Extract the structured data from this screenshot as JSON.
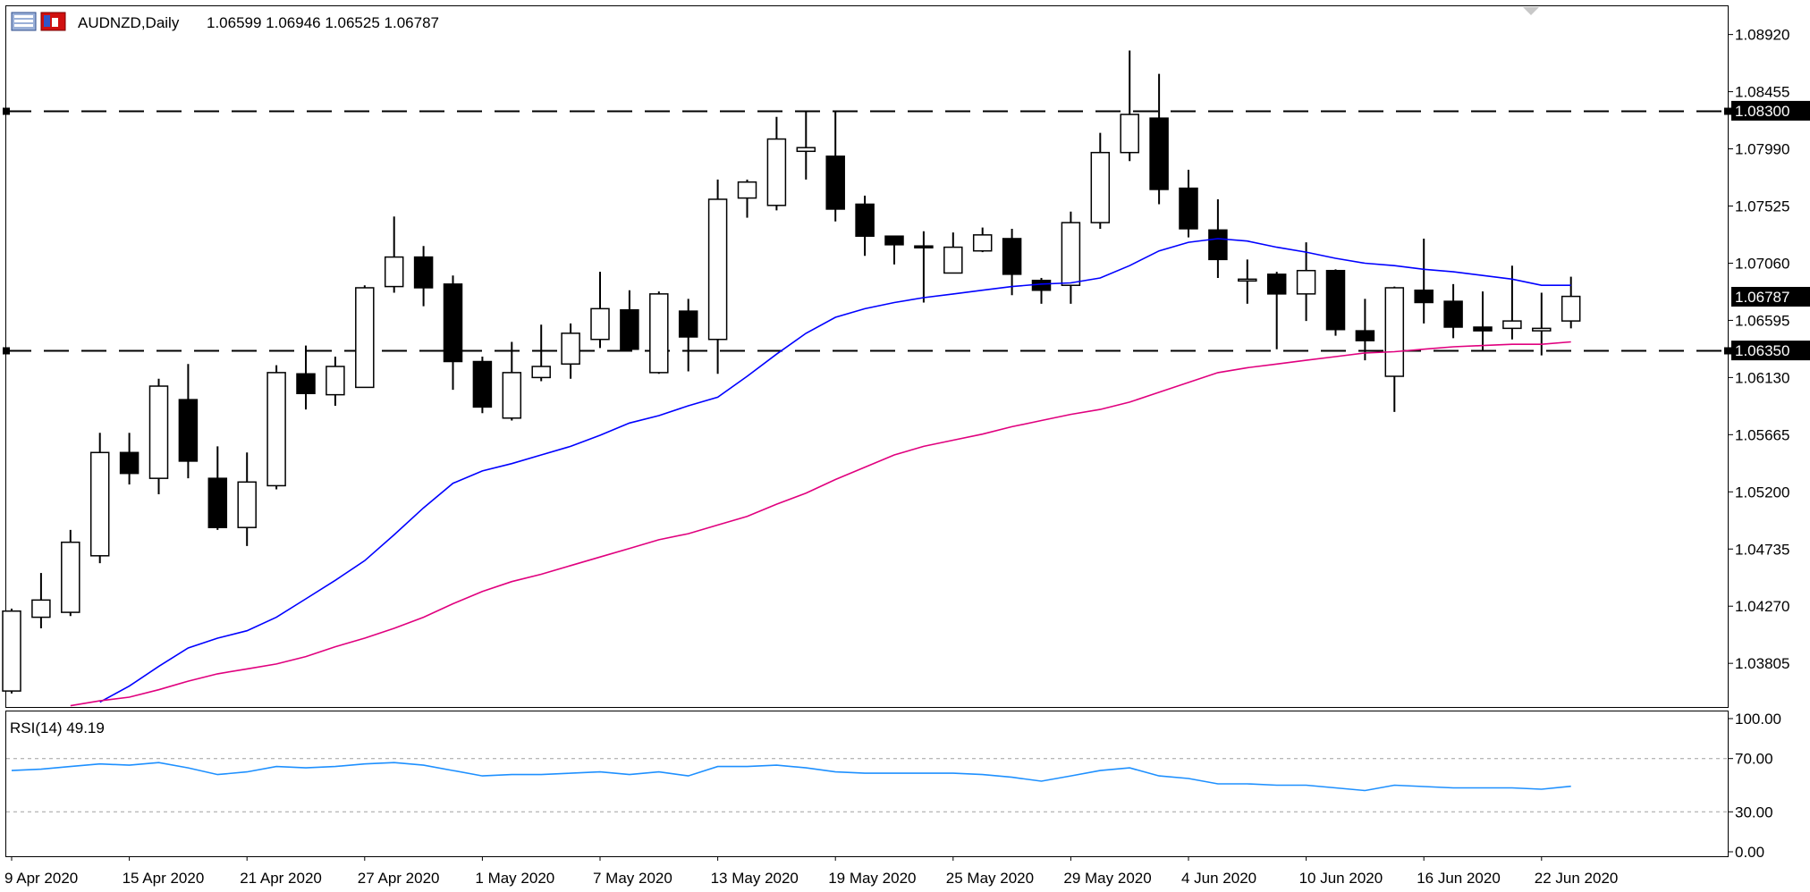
{
  "header": {
    "symbol_timeframe": "AUDNZD,Daily",
    "ohlc": "1.06599 1.06946 1.06525 1.06787"
  },
  "rsi_panel": {
    "label": "RSI(14) 49.19",
    "ticks": [
      "100.00",
      "70.00",
      "30.00",
      "0.00"
    ]
  },
  "colors": {
    "background": "#ffffff",
    "frame": "#000000",
    "bull_body": "#ffffff",
    "bear_body": "#000000",
    "ma_fast": "#0000ff",
    "ma_slow": "#e0007e",
    "rsi_line": "#1e90ff",
    "level_line": "#000000",
    "rsi_levels": "#a0a0a0"
  },
  "icons": [
    "chart-properties-icon",
    "chart-trade-icon"
  ],
  "chart_data": [
    {
      "type": "candlestick",
      "title": "AUDNZD,Daily",
      "ylim": [
        1.0345,
        1.0915
      ],
      "y_ticks": [
        "1.08920",
        "1.08455",
        "1.07990",
        "1.07525",
        "1.07060",
        "1.06595",
        "1.06130",
        "1.05665",
        "1.05200",
        "1.04735",
        "1.04270",
        "1.03805"
      ],
      "x_tick_labels": [
        "9 Apr 2020",
        "15 Apr 2020",
        "21 Apr 2020",
        "27 Apr 2020",
        "1 May 2020",
        "7 May 2020",
        "13 May 2020",
        "19 May 2020",
        "25 May 2020",
        "29 May 2020",
        "4 Jun 2020",
        "10 Jun 2020",
        "16 Jun 2020",
        "22 Jun 2020"
      ],
      "candles": [
        {
          "date": "2020-04-09",
          "open": 1.0358,
          "high": 1.0425,
          "low": 1.0356,
          "close": 1.0423
        },
        {
          "date": "2020-04-10",
          "open": 1.0418,
          "high": 1.0454,
          "low": 1.0409,
          "close": 1.0432
        },
        {
          "date": "2020-04-13",
          "open": 1.0422,
          "high": 1.0489,
          "low": 1.0419,
          "close": 1.0479
        },
        {
          "date": "2020-04-14",
          "open": 1.0468,
          "high": 1.0568,
          "low": 1.0462,
          "close": 1.0552
        },
        {
          "date": "2020-04-15",
          "open": 1.0552,
          "high": 1.0568,
          "low": 1.0526,
          "close": 1.0535
        },
        {
          "date": "2020-04-16",
          "open": 1.0531,
          "high": 1.0612,
          "low": 1.0518,
          "close": 1.0606
        },
        {
          "date": "2020-04-17",
          "open": 1.0595,
          "high": 1.0624,
          "low": 1.0531,
          "close": 1.0545
        },
        {
          "date": "2020-04-20",
          "open": 1.0531,
          "high": 1.0557,
          "low": 1.0489,
          "close": 1.0491
        },
        {
          "date": "2020-04-21",
          "open": 1.0491,
          "high": 1.0552,
          "low": 1.0476,
          "close": 1.0528
        },
        {
          "date": "2020-04-22",
          "open": 1.0525,
          "high": 1.0623,
          "low": 1.0522,
          "close": 1.0617
        },
        {
          "date": "2020-04-23",
          "open": 1.0616,
          "high": 1.0639,
          "low": 1.0587,
          "close": 1.06
        },
        {
          "date": "2020-04-24",
          "open": 1.0599,
          "high": 1.063,
          "low": 1.059,
          "close": 1.0622
        },
        {
          "date": "2020-04-27",
          "open": 1.0605,
          "high": 1.0688,
          "low": 1.0605,
          "close": 1.0686
        },
        {
          "date": "2020-04-28",
          "open": 1.0687,
          "high": 1.0744,
          "low": 1.0682,
          "close": 1.0711
        },
        {
          "date": "2020-04-29",
          "open": 1.0711,
          "high": 1.072,
          "low": 1.0671,
          "close": 1.0686
        },
        {
          "date": "2020-04-30",
          "open": 1.0689,
          "high": 1.0696,
          "low": 1.0603,
          "close": 1.0626
        },
        {
          "date": "2020-05-01",
          "open": 1.0626,
          "high": 1.063,
          "low": 1.0584,
          "close": 1.0589
        },
        {
          "date": "2020-05-04",
          "open": 1.058,
          "high": 1.0642,
          "low": 1.0578,
          "close": 1.0617
        },
        {
          "date": "2020-05-05",
          "open": 1.0613,
          "high": 1.0656,
          "low": 1.061,
          "close": 1.0622
        },
        {
          "date": "2020-05-06",
          "open": 1.0624,
          "high": 1.0657,
          "low": 1.0612,
          "close": 1.0649
        },
        {
          "date": "2020-05-07",
          "open": 1.0644,
          "high": 1.0699,
          "low": 1.0637,
          "close": 1.0669
        },
        {
          "date": "2020-05-08",
          "open": 1.0668,
          "high": 1.0684,
          "low": 1.0637,
          "close": 1.0636
        },
        {
          "date": "2020-05-11",
          "open": 1.0617,
          "high": 1.0683,
          "low": 1.0616,
          "close": 1.0681
        },
        {
          "date": "2020-05-12",
          "open": 1.0667,
          "high": 1.0677,
          "low": 1.0618,
          "close": 1.0646
        },
        {
          "date": "2020-05-13",
          "open": 1.0644,
          "high": 1.0774,
          "low": 1.0616,
          "close": 1.0758
        },
        {
          "date": "2020-05-14",
          "open": 1.0759,
          "high": 1.0774,
          "low": 1.0743,
          "close": 1.0772
        },
        {
          "date": "2020-05-15",
          "open": 1.0753,
          "high": 1.0825,
          "low": 1.0749,
          "close": 1.0807
        },
        {
          "date": "2020-05-18",
          "open": 1.0797,
          "high": 1.083,
          "low": 1.0774,
          "close": 1.08
        },
        {
          "date": "2020-05-19",
          "open": 1.0793,
          "high": 1.083,
          "low": 1.074,
          "close": 1.075
        },
        {
          "date": "2020-05-20",
          "open": 1.0754,
          "high": 1.0761,
          "low": 1.0712,
          "close": 1.0728
        },
        {
          "date": "2020-05-21",
          "open": 1.0728,
          "high": 1.0727,
          "low": 1.0705,
          "close": 1.0721
        },
        {
          "date": "2020-05-22",
          "open": 1.072,
          "high": 1.0732,
          "low": 1.0674,
          "close": 1.0719
        },
        {
          "date": "2020-05-25",
          "open": 1.0698,
          "high": 1.0731,
          "low": 1.0698,
          "close": 1.0719
        },
        {
          "date": "2020-05-26",
          "open": 1.0716,
          "high": 1.0735,
          "low": 1.0715,
          "close": 1.0729
        },
        {
          "date": "2020-05-27",
          "open": 1.0726,
          "high": 1.0734,
          "low": 1.068,
          "close": 1.0697
        },
        {
          "date": "2020-05-28",
          "open": 1.0692,
          "high": 1.0694,
          "low": 1.0673,
          "close": 1.0684
        },
        {
          "date": "2020-05-29",
          "open": 1.0688,
          "high": 1.0748,
          "low": 1.0673,
          "close": 1.0739
        },
        {
          "date": "2020-06-01",
          "open": 1.0739,
          "high": 1.0812,
          "low": 1.0734,
          "close": 1.0796
        },
        {
          "date": "2020-06-02",
          "open": 1.0796,
          "high": 1.0879,
          "low": 1.0789,
          "close": 1.0827
        },
        {
          "date": "2020-06-03",
          "open": 1.0824,
          "high": 1.086,
          "low": 1.0754,
          "close": 1.0766
        },
        {
          "date": "2020-06-04",
          "open": 1.0767,
          "high": 1.0782,
          "low": 1.0727,
          "close": 1.0734
        },
        {
          "date": "2020-06-05",
          "open": 1.0733,
          "high": 1.0758,
          "low": 1.0694,
          "close": 1.0709
        },
        {
          "date": "2020-06-08",
          "open": 1.0693,
          "high": 1.0709,
          "low": 1.0673,
          "close": 1.0693
        },
        {
          "date": "2020-06-09",
          "open": 1.0697,
          "high": 1.0699,
          "low": 1.0636,
          "close": 1.0681
        },
        {
          "date": "2020-06-10",
          "open": 1.0681,
          "high": 1.0723,
          "low": 1.0659,
          "close": 1.07
        },
        {
          "date": "2020-06-11",
          "open": 1.07,
          "high": 1.0701,
          "low": 1.0647,
          "close": 1.0652
        },
        {
          "date": "2020-06-12",
          "open": 1.0651,
          "high": 1.0677,
          "low": 1.0627,
          "close": 1.0643
        },
        {
          "date": "2020-06-15",
          "open": 1.0614,
          "high": 1.0687,
          "low": 1.0585,
          "close": 1.0686
        },
        {
          "date": "2020-06-16",
          "open": 1.0684,
          "high": 1.0726,
          "low": 1.0657,
          "close": 1.0674
        },
        {
          "date": "2020-06-17",
          "open": 1.0675,
          "high": 1.0689,
          "low": 1.0645,
          "close": 1.0654
        },
        {
          "date": "2020-06-18",
          "open": 1.0654,
          "high": 1.0683,
          "low": 1.0635,
          "close": 1.0651
        },
        {
          "date": "2020-06-19",
          "open": 1.0653,
          "high": 1.0704,
          "low": 1.0644,
          "close": 1.0659
        },
        {
          "date": "2020-06-22",
          "open": 1.0651,
          "high": 1.0682,
          "low": 1.0631,
          "close": 1.0653
        },
        {
          "date": "2020-06-23",
          "open": 1.0659,
          "high": 1.0695,
          "low": 1.0653,
          "close": 1.0679
        }
      ],
      "moving_averages": [
        {
          "color": "blue",
          "values": [
            null,
            null,
            null,
            1.0349,
            1.0362,
            1.0378,
            1.0393,
            1.0401,
            1.0407,
            1.0418,
            1.0433,
            1.0448,
            1.0464,
            1.0485,
            1.0507,
            1.0527,
            1.0537,
            1.0543,
            1.055,
            1.0557,
            1.0566,
            1.0576,
            1.0582,
            1.059,
            1.0597,
            1.0614,
            1.0632,
            1.0649,
            1.0662,
            1.0669,
            1.0674,
            1.0678,
            1.0681,
            1.0684,
            1.0687,
            1.0689,
            1.069,
            1.0694,
            1.0704,
            1.0716,
            1.0723,
            1.0726,
            1.0724,
            1.0719,
            1.0715,
            1.071,
            1.0706,
            1.0704,
            1.0701,
            1.0699,
            1.0696,
            1.0693,
            1.0688,
            1.0688
          ]
        },
        {
          "color": "magenta",
          "values": [
            null,
            null,
            1.0346,
            1.035,
            1.0353,
            1.0359,
            1.0366,
            1.0372,
            1.0376,
            1.038,
            1.0386,
            1.0394,
            1.0401,
            1.0409,
            1.0418,
            1.0429,
            1.0439,
            1.0447,
            1.0453,
            1.046,
            1.0467,
            1.0474,
            1.0481,
            1.0486,
            1.0493,
            1.05,
            1.051,
            1.0519,
            1.053,
            1.054,
            1.055,
            1.0557,
            1.0562,
            1.0567,
            1.0573,
            1.0578,
            1.0583,
            1.0587,
            1.0593,
            1.0601,
            1.0609,
            1.0617,
            1.0621,
            1.0624,
            1.0627,
            1.063,
            1.0633,
            1.0634,
            1.0636,
            1.0638,
            1.0639,
            1.064,
            1.064,
            1.0642
          ]
        }
      ],
      "horizontal_levels": [
        {
          "value": 1.083,
          "label": "1.08300"
        },
        {
          "value": 1.0635,
          "label": "1.06350"
        }
      ],
      "current_price": {
        "value": 1.06787,
        "label": "1.06787"
      }
    },
    {
      "type": "line",
      "title": "RSI(14) 49.19",
      "ylim": [
        0,
        100
      ],
      "y_ticks": [
        "100.00",
        "70.00",
        "30.00",
        "0.00"
      ],
      "levels": [
        70,
        30
      ],
      "values": [
        61,
        62,
        64,
        66,
        65,
        67,
        63,
        58,
        60,
        64,
        63,
        64,
        66,
        67,
        65,
        61,
        57,
        58,
        58,
        59,
        60,
        58,
        60,
        57,
        64,
        64,
        65,
        63,
        60,
        59,
        59,
        59,
        59,
        58,
        56,
        53,
        57,
        61,
        63,
        57,
        55,
        51,
        51,
        50,
        50,
        48,
        46,
        50,
        49,
        48,
        48,
        48,
        47,
        49.19
      ]
    }
  ]
}
